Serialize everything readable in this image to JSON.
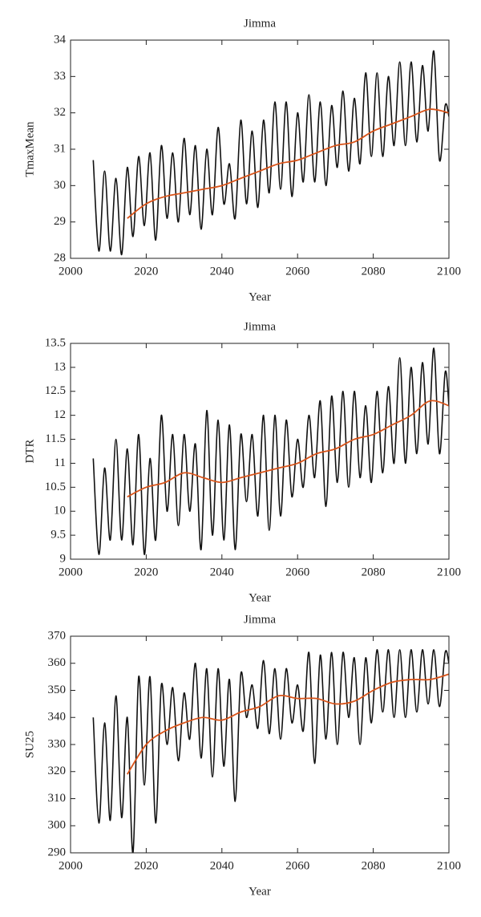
{
  "chart_data": [
    {
      "type": "line",
      "title": "Jimma",
      "xlabel": "Year",
      "ylabel": "TmaxMean",
      "xlim": [
        2000,
        2100
      ],
      "xticks": [
        2000,
        2020,
        2040,
        2060,
        2080,
        2100
      ],
      "ylim": [
        28,
        34
      ],
      "yticks": [
        28,
        29,
        30,
        31,
        32,
        33,
        34
      ],
      "series": [
        {
          "color": "#111111",
          "x": [
            2006,
            2007.5,
            2009,
            2010.5,
            2012,
            2013.5,
            2015,
            2016.5,
            2018,
            2019.5,
            2021,
            2022.5,
            2024,
            2025.5,
            2027,
            2028.5,
            2030,
            2031.5,
            2033,
            2034.5,
            2036,
            2037.5,
            2039,
            2040.5,
            2042,
            2043.5,
            2045,
            2046.5,
            2048,
            2049.5,
            2051,
            2052.5,
            2054,
            2055.5,
            2057,
            2058.5,
            2060,
            2061.5,
            2063,
            2064.5,
            2066,
            2067.5,
            2069,
            2070.5,
            2072,
            2073.5,
            2075,
            2076.5,
            2078,
            2079.5,
            2081,
            2082.5,
            2084,
            2085.5,
            2087,
            2088.5,
            2090,
            2091.5,
            2093,
            2094.5,
            2096,
            2097.5,
            2099,
            2100
          ],
          "values": [
            30.7,
            28.2,
            30.4,
            28.2,
            30.2,
            28.1,
            30.5,
            28.6,
            30.8,
            28.9,
            30.9,
            28.5,
            31.1,
            29.1,
            30.9,
            29.0,
            31.3,
            29.2,
            31.1,
            28.8,
            31.0,
            29.2,
            31.6,
            29.5,
            30.6,
            29.1,
            31.8,
            29.5,
            31.5,
            29.4,
            31.8,
            29.8,
            32.3,
            29.9,
            32.3,
            29.7,
            32.0,
            30.1,
            32.5,
            30.1,
            32.3,
            30.0,
            32.2,
            30.5,
            32.6,
            30.4,
            32.4,
            30.6,
            33.1,
            30.8,
            33.1,
            30.8,
            33.0,
            31.1,
            33.4,
            31.1,
            33.4,
            31.2,
            33.3,
            31.5,
            33.7,
            30.7,
            32.2,
            31.9
          ]
        },
        {
          "color": "#d9541a",
          "x": [
            2015,
            2020,
            2025,
            2030,
            2035,
            2040,
            2045,
            2050,
            2055,
            2060,
            2065,
            2070,
            2075,
            2080,
            2085,
            2090,
            2095,
            2100
          ],
          "values": [
            29.1,
            29.5,
            29.7,
            29.8,
            29.9,
            30.0,
            30.2,
            30.4,
            30.6,
            30.7,
            30.9,
            31.1,
            31.2,
            31.5,
            31.7,
            31.9,
            32.1,
            32.0
          ]
        }
      ]
    },
    {
      "type": "line",
      "title": "Jimma",
      "xlabel": "Year",
      "ylabel": "DTR",
      "xlim": [
        2000,
        2100
      ],
      "xticks": [
        2000,
        2020,
        2040,
        2060,
        2080,
        2100
      ],
      "ylim": [
        9,
        13.5
      ],
      "yticks": [
        9,
        9.5,
        10,
        10.5,
        11,
        11.5,
        12,
        12.5,
        13,
        13.5
      ],
      "series": [
        {
          "color": "#111111",
          "x": [
            2006,
            2007.5,
            2009,
            2010.5,
            2012,
            2013.5,
            2015,
            2016.5,
            2018,
            2019.5,
            2021,
            2022.5,
            2024,
            2025.5,
            2027,
            2028.5,
            2030,
            2031.5,
            2033,
            2034.5,
            2036,
            2037.5,
            2039,
            2040.5,
            2042,
            2043.5,
            2045,
            2046.5,
            2048,
            2049.5,
            2051,
            2052.5,
            2054,
            2055.5,
            2057,
            2058.5,
            2060,
            2061.5,
            2063,
            2064.5,
            2066,
            2067.5,
            2069,
            2070.5,
            2072,
            2073.5,
            2075,
            2076.5,
            2078,
            2079.5,
            2081,
            2082.5,
            2084,
            2085.5,
            2087,
            2088.5,
            2090,
            2091.5,
            2093,
            2094.5,
            2096,
            2097.5,
            2099,
            2100
          ],
          "values": [
            11.1,
            9.1,
            10.9,
            9.4,
            11.5,
            9.4,
            11.3,
            9.3,
            11.6,
            9.1,
            11.1,
            9.4,
            12.0,
            10.0,
            11.6,
            9.7,
            11.6,
            10.0,
            11.4,
            9.2,
            12.1,
            9.5,
            11.9,
            9.4,
            11.8,
            9.2,
            11.6,
            10.2,
            11.6,
            9.9,
            12.0,
            9.6,
            12.0,
            9.9,
            11.9,
            10.3,
            11.5,
            10.5,
            12.0,
            10.7,
            12.3,
            10.1,
            12.4,
            10.6,
            12.5,
            10.5,
            12.5,
            10.7,
            12.2,
            10.6,
            12.5,
            10.8,
            12.6,
            11.0,
            13.2,
            11.0,
            13.0,
            11.2,
            13.1,
            11.4,
            13.4,
            11.2,
            12.9,
            12.2
          ]
        },
        {
          "color": "#d9541a",
          "x": [
            2015,
            2020,
            2025,
            2030,
            2035,
            2040,
            2045,
            2050,
            2055,
            2060,
            2065,
            2070,
            2075,
            2080,
            2085,
            2090,
            2095,
            2100
          ],
          "values": [
            10.3,
            10.5,
            10.6,
            10.8,
            10.7,
            10.6,
            10.7,
            10.8,
            10.9,
            11.0,
            11.2,
            11.3,
            11.5,
            11.6,
            11.8,
            12.0,
            12.3,
            12.2
          ]
        }
      ]
    },
    {
      "type": "line",
      "title": "Jimma",
      "xlabel": "Year",
      "ylabel": "SU25",
      "xlim": [
        2000,
        2100
      ],
      "xticks": [
        2000,
        2020,
        2040,
        2060,
        2080,
        2100
      ],
      "ylim": [
        290,
        370
      ],
      "yticks": [
        290,
        300,
        310,
        320,
        330,
        340,
        350,
        360,
        370
      ],
      "series": [
        {
          "color": "#111111",
          "x": [
            2006,
            2007.5,
            2009,
            2010.5,
            2012,
            2013.5,
            2015,
            2016.5,
            2018,
            2019.5,
            2021,
            2022.5,
            2024,
            2025.5,
            2027,
            2028.5,
            2030,
            2031.5,
            2033,
            2034.5,
            2036,
            2037.5,
            2039,
            2040.5,
            2042,
            2043.5,
            2045,
            2046.5,
            2048,
            2049.5,
            2051,
            2052.5,
            2054,
            2055.5,
            2057,
            2058.5,
            2060,
            2061.5,
            2063,
            2064.5,
            2066,
            2067.5,
            2069,
            2070.5,
            2072,
            2073.5,
            2075,
            2076.5,
            2078,
            2079.5,
            2081,
            2082.5,
            2084,
            2085.5,
            2087,
            2088.5,
            2090,
            2091.5,
            2093,
            2094.5,
            2096,
            2097.5,
            2099,
            2100
          ],
          "values": [
            340,
            301,
            338,
            302,
            348,
            303,
            340,
            290,
            355,
            315,
            355,
            301,
            352,
            330,
            351,
            324,
            349,
            332,
            360,
            325,
            358,
            318,
            358,
            322,
            354,
            309,
            356,
            340,
            352,
            336,
            361,
            334,
            358,
            332,
            358,
            338,
            352,
            335,
            364,
            323,
            363,
            332,
            364,
            330,
            364,
            340,
            362,
            330,
            362,
            338,
            365,
            342,
            365,
            340,
            365,
            340,
            365,
            342,
            365,
            345,
            365,
            344,
            364,
            360
          ]
        },
        {
          "color": "#d9541a",
          "x": [
            2015,
            2020,
            2025,
            2030,
            2035,
            2040,
            2045,
            2050,
            2055,
            2060,
            2065,
            2070,
            2075,
            2080,
            2085,
            2090,
            2095,
            2100
          ],
          "values": [
            319,
            330,
            335,
            338,
            340,
            339,
            342,
            344,
            348,
            347,
            347,
            345,
            346,
            350,
            353,
            354,
            354,
            356
          ]
        }
      ]
    }
  ]
}
